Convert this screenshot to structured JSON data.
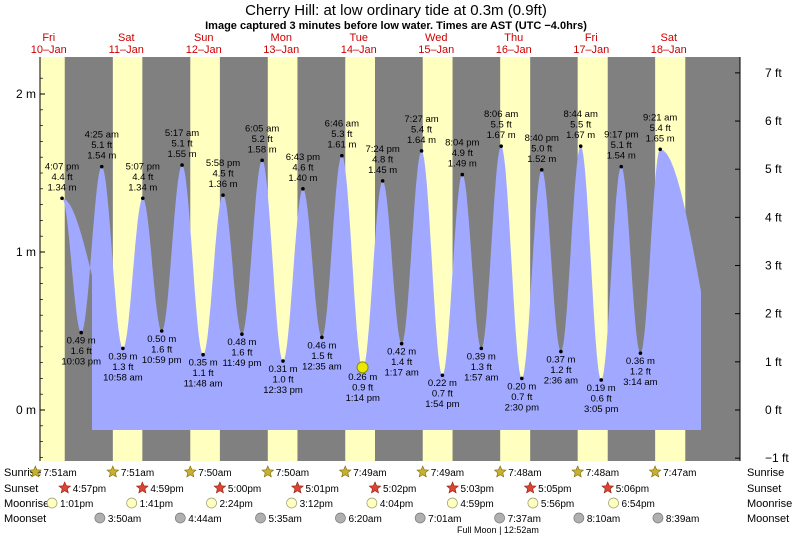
{
  "chart_data": {
    "type": "area",
    "title": "Cherry Hill: at low  ordinary tide at 0.3m (0.9ft)",
    "subtitle": "Image captured 3 minutes before low water. Times are AST (UTC −4.0hrs)",
    "y_left_ticks": [
      {
        "v": 0,
        "label": "0 m"
      },
      {
        "v": 1,
        "label": "1 m"
      },
      {
        "v": 2,
        "label": "2 m"
      }
    ],
    "y_right_ticks": [
      {
        "v": -1,
        "label": "−1 ft"
      },
      {
        "v": 0,
        "label": "0 ft"
      },
      {
        "v": 1,
        "label": "1 ft"
      },
      {
        "v": 2,
        "label": "2 ft"
      },
      {
        "v": 3,
        "label": "3 ft"
      },
      {
        "v": 4,
        "label": "4 ft"
      },
      {
        "v": 5,
        "label": "5 ft"
      },
      {
        "v": 6,
        "label": "6 ft"
      },
      {
        "v": 7,
        "label": "7 ft"
      }
    ],
    "ylim_m": [
      -0.32,
      2.18
    ],
    "days": [
      {
        "dow": "Fri",
        "date": "10–Jan"
      },
      {
        "dow": "Sat",
        "date": "11–Jan"
      },
      {
        "dow": "Sun",
        "date": "12–Jan"
      },
      {
        "dow": "Mon",
        "date": "13–Jan"
      },
      {
        "dow": "Tue",
        "date": "14–Jan"
      },
      {
        "dow": "Wed",
        "date": "15–Jan"
      },
      {
        "dow": "Thu",
        "date": "16–Jan"
      },
      {
        "dow": "Fri",
        "date": "17–Jan"
      },
      {
        "dow": "Sat",
        "date": "18–Jan"
      }
    ],
    "tides": [
      {
        "day": 0,
        "time": "4:07 pm",
        "h": 1.34,
        "ft": "4.4 ft",
        "m": "1.34 m"
      },
      {
        "day": 0,
        "time": "10:03 pm",
        "h": 0.49,
        "ft": "1.6 ft",
        "m": "0.49 m"
      },
      {
        "day": 1,
        "time": "4:25 am",
        "h": 1.54,
        "ft": "5.1 ft",
        "m": "1.54 m"
      },
      {
        "day": 1,
        "time": "10:58 am",
        "h": 0.39,
        "ft": "1.3 ft",
        "m": "0.39 m"
      },
      {
        "day": 1,
        "time": "5:07 pm",
        "h": 1.34,
        "ft": "4.4 ft",
        "m": "1.34 m"
      },
      {
        "day": 1,
        "time": "10:59 pm",
        "h": 0.5,
        "ft": "1.6 ft",
        "m": "0.50 m"
      },
      {
        "day": 2,
        "time": "5:17 am",
        "h": 1.55,
        "ft": "5.1 ft",
        "m": "1.55 m"
      },
      {
        "day": 2,
        "time": "11:48 am",
        "h": 0.35,
        "ft": "1.1 ft",
        "m": "0.35 m"
      },
      {
        "day": 2,
        "time": "5:58 pm",
        "h": 1.36,
        "ft": "4.5 ft",
        "m": "1.36 m"
      },
      {
        "day": 2,
        "time": "11:49 pm",
        "h": 0.48,
        "ft": "1.6 ft",
        "m": "0.48 m"
      },
      {
        "day": 3,
        "time": "6:05 am",
        "h": 1.58,
        "ft": "5.2 ft",
        "m": "1.58 m"
      },
      {
        "day": 3,
        "time": "12:33 pm",
        "h": 0.31,
        "ft": "1.0 ft",
        "m": "0.31 m"
      },
      {
        "day": 3,
        "time": "6:43 pm",
        "h": 1.4,
        "ft": "4.6 ft",
        "m": "1.40 m"
      },
      {
        "day": 4,
        "time": "12:35 am",
        "h": 0.46,
        "ft": "1.5 ft",
        "m": "0.46 m"
      },
      {
        "day": 4,
        "time": "6:46 am",
        "h": 1.61,
        "ft": "5.3 ft",
        "m": "1.61 m"
      },
      {
        "day": 4,
        "time": "1:14 pm",
        "h": 0.26,
        "ft": "0.9 ft",
        "m": "0.26 m"
      },
      {
        "day": 4,
        "time": "7:24 pm",
        "h": 1.45,
        "ft": "4.8 ft",
        "m": "1.45 m"
      },
      {
        "day": 5,
        "time": "1:17 am",
        "h": 0.42,
        "ft": "1.4 ft",
        "m": "0.42 m"
      },
      {
        "day": 5,
        "time": "7:27 am",
        "h": 1.64,
        "ft": "5.4 ft",
        "m": "1.64 m"
      },
      {
        "day": 5,
        "time": "1:54 pm",
        "h": 0.22,
        "ft": "0.7 ft",
        "m": "0.22 m"
      },
      {
        "day": 5,
        "time": "8:04 pm",
        "h": 1.49,
        "ft": "4.9 ft",
        "m": "1.49 m"
      },
      {
        "day": 6,
        "time": "1:57 am",
        "h": 0.39,
        "ft": "1.3 ft",
        "m": "0.39 m"
      },
      {
        "day": 6,
        "time": "8:06 am",
        "h": 1.67,
        "ft": "5.5 ft",
        "m": "1.67 m"
      },
      {
        "day": 6,
        "time": "2:30 pm",
        "h": 0.2,
        "ft": "0.7 ft",
        "m": "0.20 m"
      },
      {
        "day": 6,
        "time": "8:40 pm",
        "h": 1.52,
        "ft": "5.0 ft",
        "m": "1.52 m"
      },
      {
        "day": 7,
        "time": "2:36 am",
        "h": 0.37,
        "ft": "1.2 ft",
        "m": "0.37 m"
      },
      {
        "day": 7,
        "time": "8:44 am",
        "h": 1.67,
        "ft": "5.5 ft",
        "m": "1.67 m"
      },
      {
        "day": 7,
        "time": "3:05 pm",
        "h": 0.19,
        "ft": "0.6 ft",
        "m": "0.19 m"
      },
      {
        "day": 7,
        "time": "9:17 pm",
        "h": 1.54,
        "ft": "5.1 ft",
        "m": "1.54 m"
      },
      {
        "day": 8,
        "time": "3:14 am",
        "h": 0.36,
        "ft": "1.2 ft",
        "m": "0.36 m"
      },
      {
        "day": 8,
        "time": "9:21 am",
        "h": 1.65,
        "ft": "5.4 ft",
        "m": "1.65 m"
      }
    ],
    "current": {
      "day": 4,
      "time": "1:11 pm",
      "h": 0.27
    },
    "sunrise": [
      "7:51am",
      "7:51am",
      "7:50am",
      "7:50am",
      "7:49am",
      "7:49am",
      "7:48am",
      "7:48am",
      "7:47am"
    ],
    "sunset": [
      "4:57pm",
      "4:59pm",
      "5:00pm",
      "5:01pm",
      "5:02pm",
      "5:03pm",
      "5:05pm",
      "5:06pm"
    ],
    "moonrise": [
      "1:01pm",
      "1:41pm",
      "2:24pm",
      "3:12pm",
      "4:04pm",
      "4:59pm",
      "5:56pm",
      "6:54pm"
    ],
    "moonset": [
      "3:50am",
      "4:44am",
      "5:35am",
      "6:20am",
      "7:01am",
      "7:37am",
      "8:10am",
      "8:39am"
    ],
    "row_labels": {
      "sunrise": "Sunrise",
      "sunset": "Sunset",
      "moonrise": "Moonrise",
      "moonset": "Moonset"
    },
    "footnote": "Full Moon | 12:52am",
    "colors": {
      "night": "#808080",
      "day": "#ffffc0",
      "water": "#a0a8ff",
      "day_label": "#cc0000",
      "sun_star": "#c8b030",
      "sunset_star": "#dd4433",
      "moonrise": "#ffffc0",
      "moonset": "#b0b0b0",
      "current": "#e8e800"
    }
  }
}
